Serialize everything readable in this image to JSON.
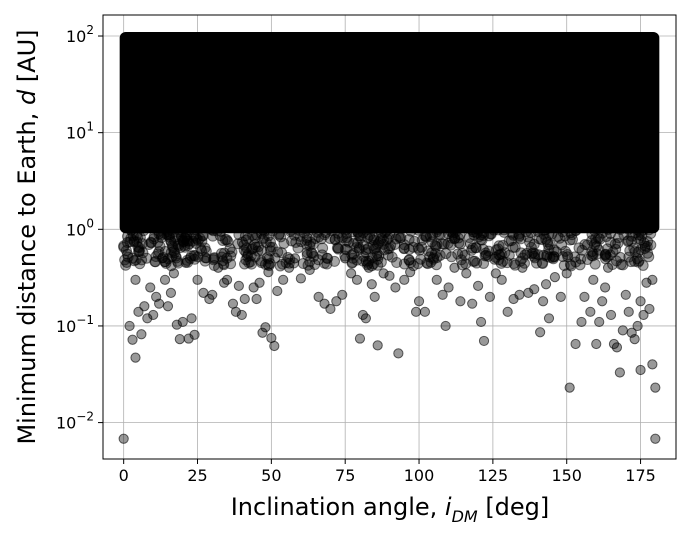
{
  "chart_data": {
    "type": "scatter",
    "xlabel": {
      "main": "Inclination angle, ",
      "symbol": "i",
      "sub": "DM",
      "unit": " [deg]"
    },
    "ylabel": {
      "main": "Minimum distance to Earth, ",
      "symbol": "d",
      "unit": " [AU]"
    },
    "xlim": [
      -7,
      187
    ],
    "ylim": [
      0.0042,
      165
    ],
    "yscale": "log",
    "grid": true,
    "x_ticks": [
      {
        "value": 0,
        "label": "0"
      },
      {
        "value": 25,
        "label": "25"
      },
      {
        "value": 50,
        "label": "50"
      },
      {
        "value": 75,
        "label": "75"
      },
      {
        "value": 100,
        "label": "100"
      },
      {
        "value": 125,
        "label": "125"
      },
      {
        "value": 150,
        "label": "150"
      },
      {
        "value": 175,
        "label": "175"
      }
    ],
    "y_ticks": [
      {
        "value": 0.01,
        "base": "10",
        "exp": "−2"
      },
      {
        "value": 0.1,
        "base": "10",
        "exp": "−1"
      },
      {
        "value": 1,
        "base": "10",
        "exp": "0"
      },
      {
        "value": 10,
        "base": "10",
        "exp": "1"
      },
      {
        "value": 100,
        "base": "10",
        "exp": "2"
      }
    ],
    "marker": {
      "color": "#000000",
      "opacity": 0.4,
      "edge": "#000000"
    },
    "dense_region": {
      "x_range": [
        0,
        180
      ],
      "y_range": [
        1,
        100
      ]
    },
    "series": [
      {
        "points": [
          [
            0,
            0.0068
          ],
          [
            1,
            0.45
          ],
          [
            2,
            0.1
          ],
          [
            3,
            0.072
          ],
          [
            4,
            0.047
          ],
          [
            4,
            0.3
          ],
          [
            5,
            0.14
          ],
          [
            6,
            0.082
          ],
          [
            7,
            0.16
          ],
          [
            8,
            0.12
          ],
          [
            9,
            0.25
          ],
          [
            10,
            0.13
          ],
          [
            11,
            0.2
          ],
          [
            12,
            0.17
          ],
          [
            13,
            0.5
          ],
          [
            14,
            0.3
          ],
          [
            15,
            0.16
          ],
          [
            16,
            0.22
          ],
          [
            17,
            0.35
          ],
          [
            18,
            0.103
          ],
          [
            19,
            0.073
          ],
          [
            20,
            0.11
          ],
          [
            21,
            0.45
          ],
          [
            22,
            0.074
          ],
          [
            23,
            0.12
          ],
          [
            24,
            0.081
          ],
          [
            25,
            0.3
          ],
          [
            27,
            0.22
          ],
          [
            28,
            0.5
          ],
          [
            29,
            0.19
          ],
          [
            30,
            0.21
          ],
          [
            32,
            0.4
          ],
          [
            34,
            0.28
          ],
          [
            35,
            0.3
          ],
          [
            37,
            0.17
          ],
          [
            38,
            0.14
          ],
          [
            39,
            0.26
          ],
          [
            40,
            0.13
          ],
          [
            41,
            0.19
          ],
          [
            42,
            0.55
          ],
          [
            44,
            0.25
          ],
          [
            45,
            0.19
          ],
          [
            46,
            0.28
          ],
          [
            47,
            0.085
          ],
          [
            48,
            0.097
          ],
          [
            49,
            0.36
          ],
          [
            50,
            0.075
          ],
          [
            51,
            0.062
          ],
          [
            52,
            0.23
          ],
          [
            54,
            0.3
          ],
          [
            56,
            0.4
          ],
          [
            58,
            0.5
          ],
          [
            60,
            0.31
          ],
          [
            63,
            0.38
          ],
          [
            66,
            0.2
          ],
          [
            68,
            0.17
          ],
          [
            70,
            0.15
          ],
          [
            72,
            0.18
          ],
          [
            74,
            0.21
          ],
          [
            75,
            0.5
          ],
          [
            77,
            0.35
          ],
          [
            79,
            0.3
          ],
          [
            80,
            0.074
          ],
          [
            81,
            0.13
          ],
          [
            82,
            0.12
          ],
          [
            83,
            0.4
          ],
          [
            84,
            0.27
          ],
          [
            85,
            0.2
          ],
          [
            86,
            0.063
          ],
          [
            88,
            0.35
          ],
          [
            90,
            0.33
          ],
          [
            92,
            0.25
          ],
          [
            93,
            0.052
          ],
          [
            95,
            0.3
          ],
          [
            97,
            0.36
          ],
          [
            99,
            0.14
          ],
          [
            100,
            0.18
          ],
          [
            102,
            0.14
          ],
          [
            104,
            0.45
          ],
          [
            106,
            0.3
          ],
          [
            108,
            0.21
          ],
          [
            109,
            0.1
          ],
          [
            110,
            0.25
          ],
          [
            112,
            0.4
          ],
          [
            114,
            0.18
          ],
          [
            116,
            0.35
          ],
          [
            118,
            0.17
          ],
          [
            120,
            0.26
          ],
          [
            121,
            0.11
          ],
          [
            122,
            0.07
          ],
          [
            124,
            0.2
          ],
          [
            126,
            0.35
          ],
          [
            128,
            0.3
          ],
          [
            130,
            0.14
          ],
          [
            132,
            0.19
          ],
          [
            134,
            0.21
          ],
          [
            135,
            0.4
          ],
          [
            137,
            0.22
          ],
          [
            139,
            0.24
          ],
          [
            141,
            0.086
          ],
          [
            142,
            0.18
          ],
          [
            143,
            0.27
          ],
          [
            144,
            0.12
          ],
          [
            146,
            0.32
          ],
          [
            148,
            0.2
          ],
          [
            150,
            0.35
          ],
          [
            151,
            0.023
          ],
          [
            153,
            0.065
          ],
          [
            155,
            0.11
          ],
          [
            156,
            0.2
          ],
          [
            158,
            0.14
          ],
          [
            159,
            0.3
          ],
          [
            160,
            0.065
          ],
          [
            161,
            0.11
          ],
          [
            162,
            0.18
          ],
          [
            163,
            0.25
          ],
          [
            164,
            0.4
          ],
          [
            165,
            0.13
          ],
          [
            166,
            0.065
          ],
          [
            167,
            0.06
          ],
          [
            168,
            0.033
          ],
          [
            169,
            0.09
          ],
          [
            170,
            0.21
          ],
          [
            171,
            0.14
          ],
          [
            172,
            0.085
          ],
          [
            173,
            0.073
          ],
          [
            174,
            0.1
          ],
          [
            175,
            0.035
          ],
          [
            175,
            0.18
          ],
          [
            176,
            0.13
          ],
          [
            177,
            0.28
          ],
          [
            178,
            0.15
          ],
          [
            179,
            0.04
          ],
          [
            179,
            0.3
          ],
          [
            180,
            0.0068
          ],
          [
            180,
            0.023
          ]
        ]
      }
    ]
  }
}
